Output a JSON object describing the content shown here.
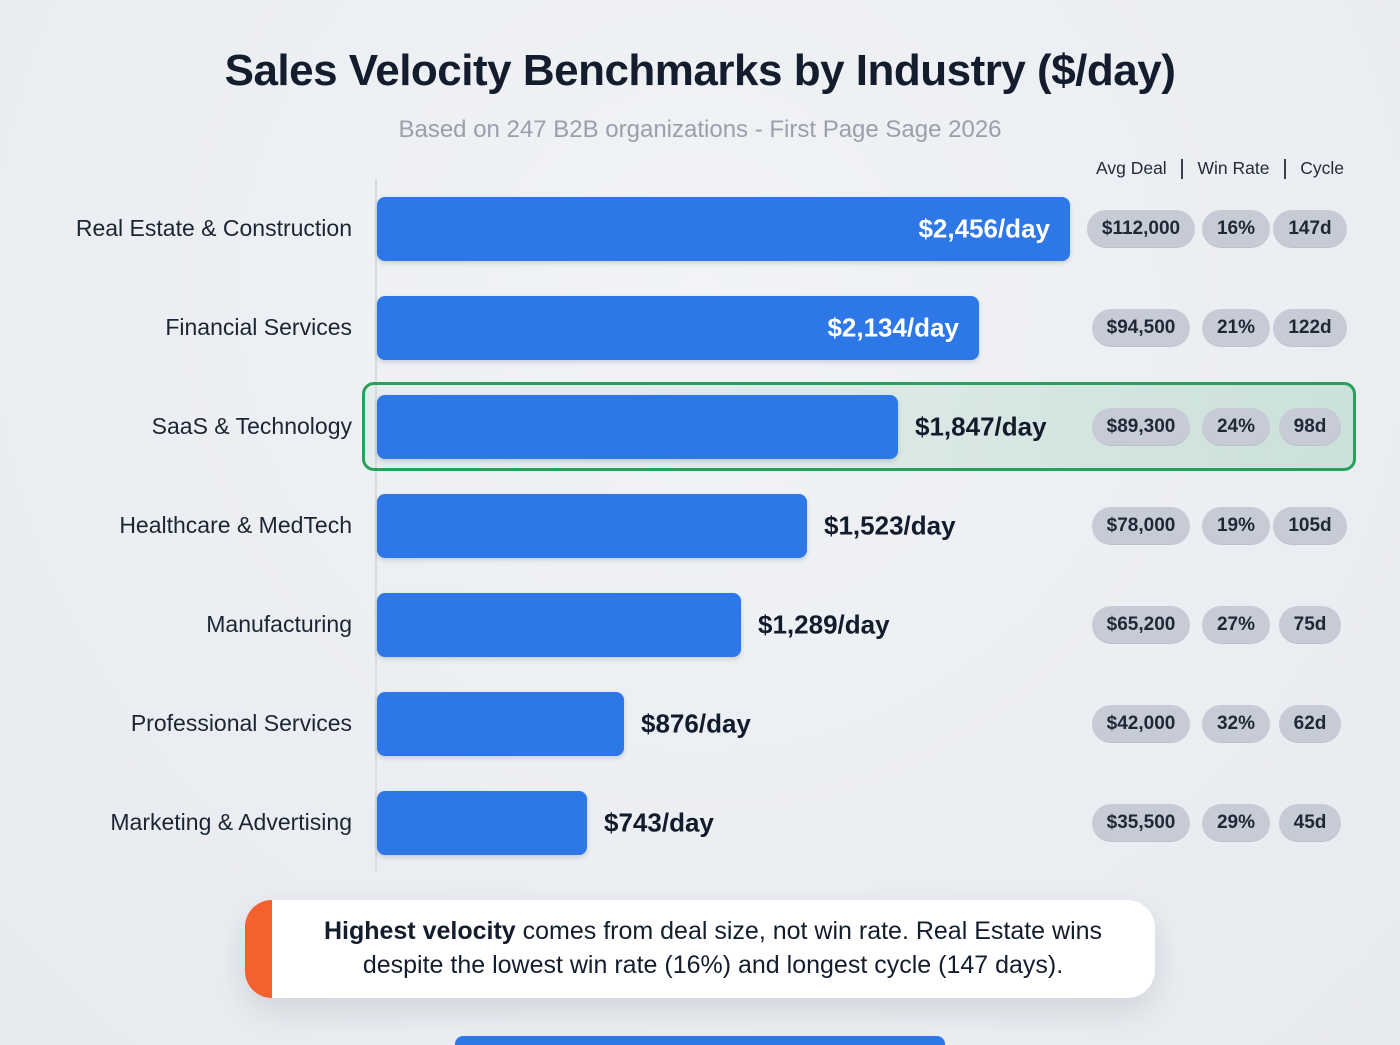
{
  "title": "Sales Velocity Benchmarks by Industry ($/day)",
  "subtitle": "Based on 247 B2B organizations - First Page Sage 2026",
  "metrics_header": {
    "avg_deal": "Avg Deal",
    "win_rate": "Win Rate",
    "cycle": "Cycle"
  },
  "chart_data": {
    "type": "bar",
    "orientation": "horizontal",
    "title": "Sales Velocity Benchmarks by Industry ($/day)",
    "subtitle": "Based on 247 B2B organizations - First Page Sage 2026",
    "unit": "$/day",
    "xlim": [
      0,
      2456
    ],
    "grid": false,
    "categories": [
      "Real Estate & Construction",
      "Financial Services",
      "SaaS & Technology",
      "Healthcare & MedTech",
      "Manufacturing",
      "Professional Services",
      "Marketing & Advertising"
    ],
    "values": [
      2456,
      2134,
      1847,
      1523,
      1289,
      876,
      743
    ],
    "rows": [
      {
        "industry": "Real Estate & Construction",
        "velocity": 2456,
        "velocity_label": "$2,456/day",
        "avg_deal": "$112,000",
        "win_rate": "16%",
        "cycle": "147d",
        "value_inside": true,
        "highlighted": false
      },
      {
        "industry": "Financial Services",
        "velocity": 2134,
        "velocity_label": "$2,134/day",
        "avg_deal": "$94,500",
        "win_rate": "21%",
        "cycle": "122d",
        "value_inside": true,
        "highlighted": false
      },
      {
        "industry": "SaaS & Technology",
        "velocity": 1847,
        "velocity_label": "$1,847/day",
        "avg_deal": "$89,300",
        "win_rate": "24%",
        "cycle": "98d",
        "value_inside": false,
        "highlighted": true
      },
      {
        "industry": "Healthcare & MedTech",
        "velocity": 1523,
        "velocity_label": "$1,523/day",
        "avg_deal": "$78,000",
        "win_rate": "19%",
        "cycle": "105d",
        "value_inside": false,
        "highlighted": false
      },
      {
        "industry": "Manufacturing",
        "velocity": 1289,
        "velocity_label": "$1,289/day",
        "avg_deal": "$65,200",
        "win_rate": "27%",
        "cycle": "75d",
        "value_inside": false,
        "highlighted": false
      },
      {
        "industry": "Professional Services",
        "velocity": 876,
        "velocity_label": "$876/day",
        "avg_deal": "$42,000",
        "win_rate": "32%",
        "cycle": "62d",
        "value_inside": false,
        "highlighted": false
      },
      {
        "industry": "Marketing & Advertising",
        "velocity": 743,
        "velocity_label": "$743/day",
        "avg_deal": "$35,500",
        "win_rate": "29%",
        "cycle": "45d",
        "value_inside": false,
        "highlighted": false
      }
    ]
  },
  "callout": {
    "highlight": "Highest velocity",
    "text": " comes from deal size, not win rate. Real Estate wins despite the lowest win rate (16%) and longest cycle (147 days)."
  },
  "colors": {
    "bar": "#2d78e6",
    "pill_bg": "#c6cbd6",
    "highlight_border": "#28a05c",
    "accent_orange": "#f2612e",
    "title": "#141d2d"
  }
}
